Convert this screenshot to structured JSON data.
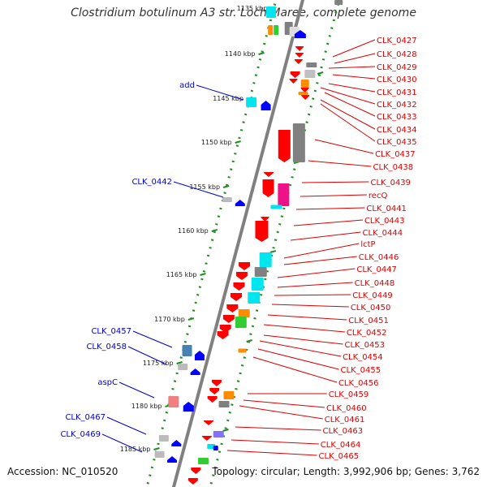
{
  "title": "Clostridium botulinum A3 str. Loch Maree, complete genome",
  "footer": {
    "accession": "Accession: NC_010520",
    "summary": "Topology: circular; Length: 3,992,906 bp; Genes: 3,762"
  },
  "colors": {
    "backbone": "#808080",
    "ticks": "#228b22",
    "feature_red": "#ff0000",
    "feature_blue": "#0000ff",
    "label_red": "#dd0000",
    "label_blue": "#0000cc",
    "cyan": "#00e5ee",
    "grey": "#808080",
    "orange": "#ff8c00",
    "green": "#33cc33",
    "magenta": "#ee1289",
    "steelblue": "#4682b4",
    "pink": "#f08080",
    "lavender": "#8470ff"
  },
  "kbp_ticks": [
    "1135 kbp",
    "1140 kbp",
    "1145 kbp",
    "1150 kbp",
    "1155 kbp",
    "1160 kbp",
    "1165 kbp",
    "1170 kbp",
    "1175 kbp",
    "1180 kbp",
    "1185 kbp"
  ],
  "left_labels": [
    "add",
    "CLK_0442",
    "CLK_0457",
    "CLK_0458",
    "aspC",
    "CLK_0467",
    "CLK_0469"
  ],
  "right_labels": [
    "CLK_0427",
    "CLK_0428",
    "CLK_0429",
    "CLK_0430",
    "CLK_0431",
    "CLK_0432",
    "CLK_0433",
    "CLK_0434",
    "CLK_0435",
    "CLK_0437",
    "CLK_0438",
    "CLK_0439",
    "recQ",
    "CLK_0441",
    "CLK_0443",
    "CLK_0444",
    "lctP",
    "CLK_0446",
    "CLK_0447",
    "CLK_0448",
    "CLK_0449",
    "CLK_0450",
    "CLK_0451",
    "CLK_0452",
    "CLK_0453",
    "CLK_0454",
    "CLK_0455",
    "CLK_0456",
    "CLK_0459",
    "CLK_0460",
    "CLK_0461",
    "CLK_0463",
    "CLK_0464",
    "CLK_0465"
  ]
}
